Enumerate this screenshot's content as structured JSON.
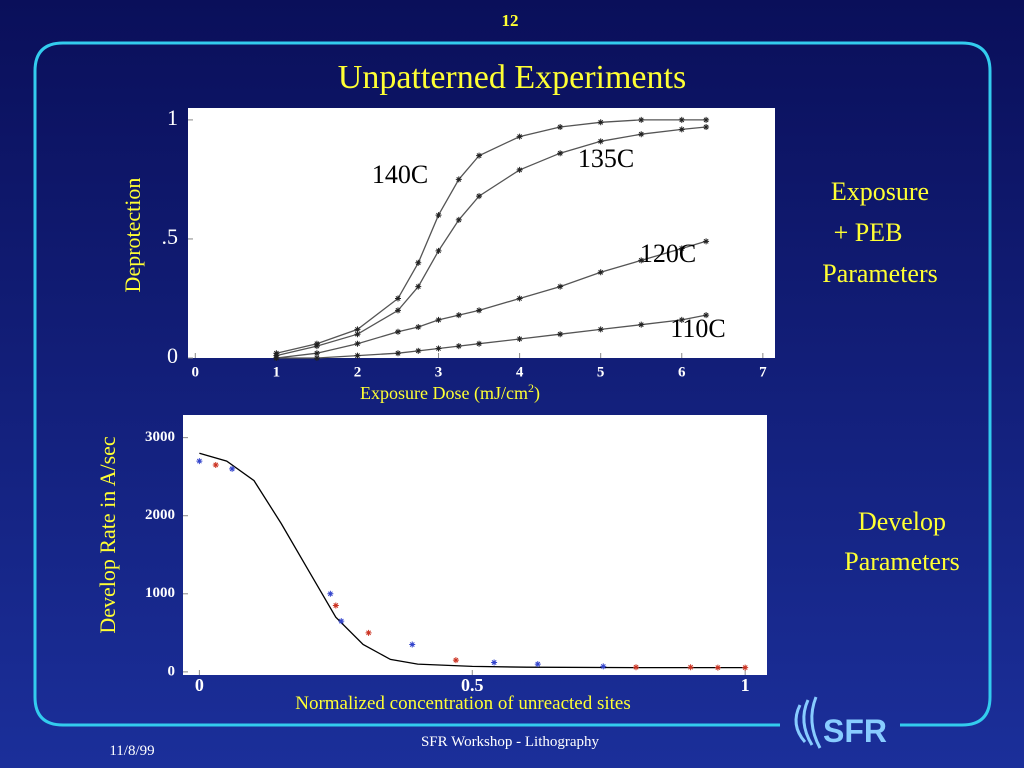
{
  "page_number": "12",
  "title": "Unpatterned Experiments",
  "side_notes": {
    "exposure": [
      "Exposure",
      "+ PEB",
      "Parameters"
    ],
    "develop": [
      "Develop",
      "Parameters"
    ]
  },
  "footer": {
    "date": "11/8/99",
    "event": "SFR Workshop - Lithography",
    "logo": "SFR"
  },
  "chart_data": [
    {
      "type": "line",
      "ylabel": "Deprotection",
      "xlabel": [
        "Exposure Dose (mJ/cm",
        "2",
        ")"
      ],
      "x": [
        1,
        1.5,
        2,
        2.5,
        2.75,
        3,
        3.25,
        3.5,
        4,
        4.5,
        5,
        5.5,
        6,
        6.3
      ],
      "xlim": [
        -0.09,
        7.15
      ],
      "xticks": [
        0,
        1,
        2,
        3,
        4,
        5,
        6,
        7
      ],
      "ylim": [
        0,
        1.05
      ],
      "yticks": [
        0,
        {
          "value": 0.5,
          "label": ".5"
        },
        1
      ],
      "grid": false,
      "series": [
        {
          "name": "140C",
          "color": "#555555",
          "style": "line+markers",
          "values": [
            0.02,
            0.06,
            0.12,
            0.25,
            0.4,
            0.6,
            0.75,
            0.85,
            0.93,
            0.97,
            0.99,
            1.0,
            1.0,
            1.0
          ]
        },
        {
          "name": "135C",
          "color": "#555555",
          "style": "line+markers",
          "values": [
            0.01,
            0.05,
            0.1,
            0.2,
            0.3,
            0.45,
            0.58,
            0.68,
            0.79,
            0.86,
            0.91,
            0.94,
            0.96,
            0.97
          ]
        },
        {
          "name": "120C",
          "color": "#555555",
          "style": "line+markers",
          "values": [
            0,
            0.02,
            0.06,
            0.11,
            0.13,
            0.16,
            0.18,
            0.2,
            0.25,
            0.3,
            0.36,
            0.41,
            0.46,
            0.49
          ]
        },
        {
          "name": "110C",
          "color": "#555555",
          "style": "line+markers",
          "values": [
            0,
            0,
            0.01,
            0.02,
            0.03,
            0.04,
            0.05,
            0.06,
            0.08,
            0.1,
            0.12,
            0.14,
            0.16,
            0.18
          ]
        }
      ]
    },
    {
      "type": "line",
      "ylabel": "Develop Rate in A/sec",
      "xlabel": "Normalized concentration of unreacted sites",
      "x": [
        0,
        0.05,
        0.1,
        0.15,
        0.2,
        0.25,
        0.3,
        0.35,
        0.4,
        0.5,
        0.6,
        0.8,
        1.0
      ],
      "xlim": [
        -0.03,
        1.04
      ],
      "xticks": [
        0,
        0.5,
        1
      ],
      "ylim": [
        -40,
        3290
      ],
      "yticks": [
        0,
        1000,
        2000,
        3000
      ],
      "grid": false,
      "series": [
        {
          "color": "#000000",
          "style": "line",
          "values": [
            2800,
            2700,
            2450,
            1900,
            1300,
            700,
            350,
            160,
            100,
            70,
            60,
            55,
            55
          ]
        },
        {
          "color": "#3344cc",
          "style": "markers",
          "x": [
            0,
            0.06,
            0.24,
            0.26,
            0.39,
            0.54,
            0.62,
            0.74
          ],
          "values": [
            2700,
            2600,
            1000,
            650,
            350,
            120,
            100,
            70
          ]
        },
        {
          "color": "#cc3322",
          "style": "markers",
          "x": [
            0.03,
            0.25,
            0.31,
            0.47,
            0.8,
            0.9,
            0.95,
            1.0
          ],
          "values": [
            2650,
            850,
            500,
            150,
            60,
            60,
            55,
            55
          ]
        }
      ]
    }
  ]
}
